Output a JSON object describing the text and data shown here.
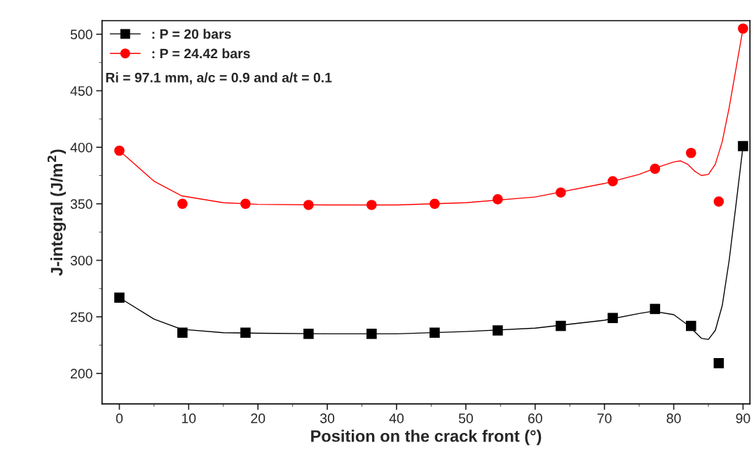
{
  "chart_data": {
    "type": "scatter",
    "xlabel": "Position on the crack front (°)",
    "ylabel": "J-integral (J/m$^{2}$)",
    "xlim": [
      -2.5,
      91
    ],
    "ylim": [
      173,
      512
    ],
    "xticks": [
      0,
      10,
      20,
      30,
      40,
      50,
      60,
      70,
      80,
      90
    ],
    "yticks": [
      200,
      250,
      300,
      350,
      400,
      450,
      500
    ],
    "grid": false,
    "legend": "top left",
    "annotations": [
      "Ri = 97.1 mm, a/c = 0.9 and a/t = 0.1"
    ],
    "series": [
      {
        "name": ": P = 20 bars",
        "marker": "square",
        "color": "#000000",
        "x": [
          0,
          9.1,
          18.2,
          27.3,
          36.4,
          45.5,
          54.6,
          63.7,
          71.2,
          77.3,
          82.5,
          86.5,
          90
        ],
        "values": [
          267,
          236,
          236,
          235,
          235,
          236,
          238,
          242,
          249,
          257,
          242,
          209,
          401
        ]
      },
      {
        "name": ": P = 24.42 bars",
        "marker": "circle",
        "color": "#ff0000",
        "x": [
          0,
          9.1,
          18.2,
          27.3,
          36.4,
          45.5,
          54.6,
          63.7,
          71.2,
          77.3,
          82.5,
          86.5,
          90
        ],
        "values": [
          397,
          350,
          350,
          349,
          349,
          350,
          354,
          360,
          370,
          381,
          395,
          352,
          505
        ]
      },
      {
        "type": "line",
        "marker": "none",
        "color": "#000000",
        "x": [
          0,
          5,
          9,
          15,
          20,
          30,
          40,
          50,
          60,
          70,
          75,
          77,
          80,
          82,
          84,
          85,
          86,
          87,
          88,
          89,
          90
        ],
        "values": [
          267,
          248,
          239,
          236,
          235.5,
          235,
          235,
          237,
          240,
          247,
          253,
          255,
          252,
          243,
          231,
          230,
          238,
          260,
          300,
          350,
          401
        ]
      },
      {
        "type": "line",
        "marker": "none",
        "color": "#ff0000",
        "x": [
          0,
          5,
          9,
          15,
          20,
          30,
          40,
          50,
          60,
          70,
          75,
          78,
          80,
          81,
          82,
          83,
          84,
          85,
          86,
          87,
          88,
          89,
          90
        ],
        "values": [
          397,
          370,
          357,
          351,
          349.5,
          349,
          349,
          351,
          356,
          368,
          376,
          383,
          387,
          388,
          385,
          379,
          375,
          376,
          385,
          405,
          435,
          470,
          505
        ]
      }
    ]
  }
}
